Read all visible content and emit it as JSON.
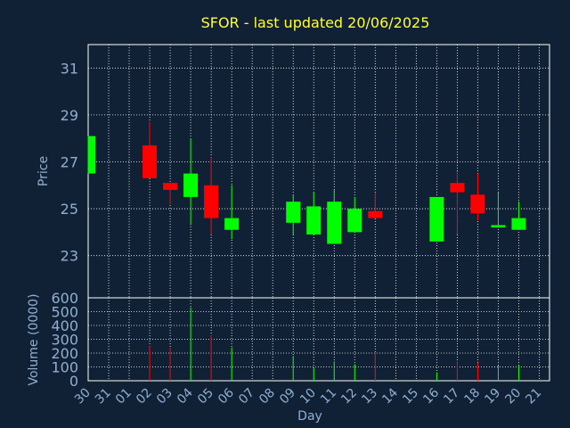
{
  "colors": {
    "background": "#102035",
    "title": "#ffff33",
    "axis_text": "#8fb0d0",
    "frame": "#ffffff",
    "grid": "#ffffff",
    "up": "#00ff00",
    "down": "#ff0000"
  },
  "chart_data": {
    "type": "candlestick",
    "title": "SFOR - last updated 20/06/2025",
    "price_panel": {
      "ylabel": "Price",
      "ylim": [
        21.2,
        32.0
      ],
      "yticks": [
        23,
        25,
        27,
        29,
        31
      ]
    },
    "volume_panel": {
      "ylabel": "Volume (0000)",
      "ylim": [
        0,
        600
      ],
      "yticks": [
        0,
        100,
        200,
        300,
        400,
        500,
        600
      ]
    },
    "xlabel": "Day",
    "x_ticks": [
      "30",
      "31",
      "01",
      "02",
      "03",
      "04",
      "05",
      "06",
      "07",
      "08",
      "09",
      "10",
      "11",
      "12",
      "13",
      "14",
      "15",
      "16",
      "17",
      "18",
      "19",
      "20",
      "21"
    ],
    "candles": [
      {
        "day": "30",
        "open": 26.5,
        "close": 28.1,
        "high": 28.1,
        "low": 26.5,
        "volume": 0
      },
      {
        "day": "02",
        "open": 27.7,
        "close": 26.3,
        "high": 28.7,
        "low": 26.3,
        "volume": 250
      },
      {
        "day": "03",
        "open": 26.1,
        "close": 25.8,
        "high": 26.1,
        "low": 25.2,
        "volume": 240
      },
      {
        "day": "04",
        "open": 25.5,
        "close": 26.5,
        "high": 28.0,
        "low": 24.3,
        "volume": 530
      },
      {
        "day": "05",
        "open": 26.0,
        "close": 24.6,
        "high": 27.2,
        "low": 23.9,
        "volume": 330
      },
      {
        "day": "06",
        "open": 24.1,
        "close": 24.6,
        "high": 26.0,
        "low": 23.7,
        "volume": 240
      },
      {
        "day": "09",
        "open": 24.4,
        "close": 25.3,
        "high": 25.6,
        "low": 23.9,
        "volume": 180
      },
      {
        "day": "10",
        "open": 23.9,
        "close": 25.1,
        "high": 25.7,
        "low": 23.9,
        "volume": 90
      },
      {
        "day": "11",
        "open": 23.5,
        "close": 25.3,
        "high": 25.8,
        "low": 23.5,
        "volume": 140
      },
      {
        "day": "12",
        "open": 24.0,
        "close": 25.0,
        "high": 25.5,
        "low": 24.0,
        "volume": 120
      },
      {
        "day": "13",
        "open": 24.9,
        "close": 24.6,
        "high": 25.7,
        "low": 24.6,
        "volume": 200
      },
      {
        "day": "16",
        "open": 23.6,
        "close": 25.5,
        "high": 25.5,
        "low": 23.6,
        "volume": 60
      },
      {
        "day": "17",
        "open": 26.1,
        "close": 25.7,
        "high": 26.6,
        "low": 23.9,
        "volume": 140
      },
      {
        "day": "18",
        "open": 25.6,
        "close": 24.8,
        "high": 26.5,
        "low": 24.5,
        "volume": 130
      },
      {
        "day": "19",
        "open": 24.2,
        "close": 24.3,
        "high": 25.7,
        "low": 24.2,
        "volume": 110
      },
      {
        "day": "20",
        "open": 24.1,
        "close": 24.6,
        "high": 25.3,
        "low": 24.1,
        "volume": 110
      }
    ]
  }
}
